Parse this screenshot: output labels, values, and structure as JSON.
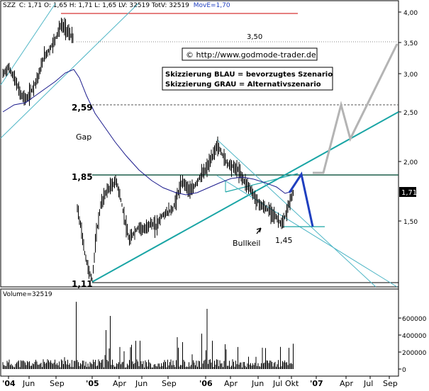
{
  "header": {
    "ticker": "SZZ",
    "ohlc_text": "C: 1,71 O: 1,65 H: 1,71 L: 1,65 LV: 32519 TotV: 32519",
    "ma_text": "MovE=1,70"
  },
  "copyright": "© http://www.godmode-trader.de",
  "legend": {
    "blue_text": "Skizzierung BLAU = bevorzugtes Szenario",
    "gray_text": "Skizzierung GRAU = Alternativszenario"
  },
  "annotations": {
    "gap": "Gap",
    "bullkeil": "Bullkeil",
    "low_label": "1,45",
    "level_350": "3,50",
    "level_259": "2,59",
    "level_185": "1,85",
    "level_111": "1,11"
  },
  "current_price_label": "1,71",
  "volume_label": "Volume=32519",
  "colors": {
    "price_bars": "#000000",
    "moving_average": "#1a1a8c",
    "trend_lines": "#1aa5a5",
    "channel_lines": "#4fb6c6",
    "resistance_red": "#cc0000",
    "blue_scenario": "#1f3fbf",
    "gray_scenario": "#b4b4b4"
  },
  "chart_data": [
    {
      "type": "line",
      "name": "price",
      "scale": "log",
      "x_ticks": [
        "'04",
        "Jun",
        "Sep",
        "'05",
        "Apr",
        "Jun",
        "Sep",
        "'06",
        "Apr",
        "Jun",
        "Jul",
        "Okt",
        "'07",
        "Apr",
        "Jul",
        "Sep"
      ],
      "y_ticks": [
        "1,50",
        "2,00",
        "2,50",
        "3,00",
        "3,50",
        "4,00"
      ],
      "ylim": [
        1.1,
        4.0
      ],
      "horizontal_levels": [
        3.5,
        2.59,
        1.85,
        1.11
      ],
      "resistance_line": 3.95,
      "current_price": 1.71,
      "key_values": {
        "gap": 2.59,
        "breakout": 1.85,
        "low": 1.11,
        "wedge_low": 1.45,
        "high_2004": 3.95
      }
    },
    {
      "type": "bar",
      "name": "volume",
      "y_ticks": [
        "0",
        "200000",
        "400000",
        "600000"
      ],
      "ylim": [
        0,
        750000
      ],
      "last_value": 32519
    }
  ]
}
